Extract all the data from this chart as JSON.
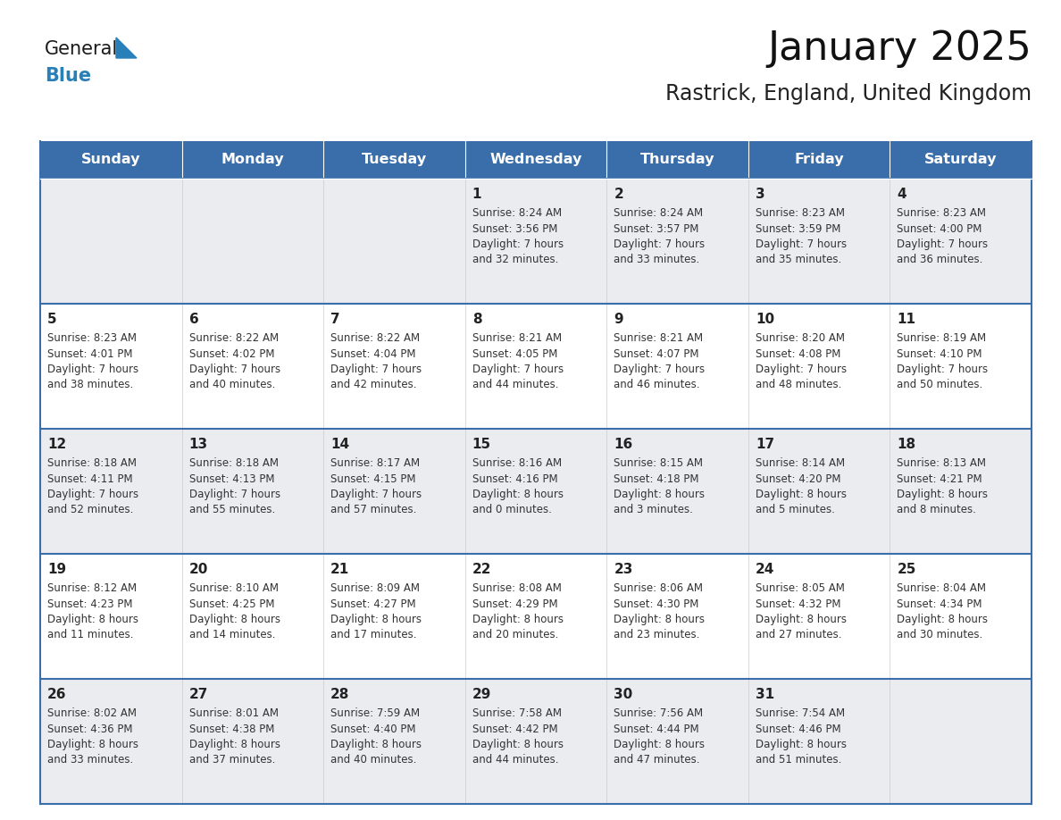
{
  "title": "January 2025",
  "subtitle": "Rastrick, England, United Kingdom",
  "days_of_week": [
    "Sunday",
    "Monday",
    "Tuesday",
    "Wednesday",
    "Thursday",
    "Friday",
    "Saturday"
  ],
  "header_bg": "#3A6EAA",
  "header_text": "#FFFFFF",
  "cell_bg_even": "#EAECF0",
  "cell_bg_odd": "#FFFFFF",
  "cell_border_light": "#CCCCCC",
  "cell_border_week": "#3A6EAA",
  "day_number_color": "#222222",
  "info_text_color": "#333333",
  "title_color": "#111111",
  "subtitle_color": "#222222",
  "logo_dark_color": "#1a1a1a",
  "logo_blue_color": "#2980B9",
  "calendar_data": [
    [
      null,
      null,
      null,
      {
        "day": "1",
        "sunrise": "8:24 AM",
        "sunset": "3:56 PM",
        "daylight": "7 hours",
        "daylight2": "and 32 minutes."
      },
      {
        "day": "2",
        "sunrise": "8:24 AM",
        "sunset": "3:57 PM",
        "daylight": "7 hours",
        "daylight2": "and 33 minutes."
      },
      {
        "day": "3",
        "sunrise": "8:23 AM",
        "sunset": "3:59 PM",
        "daylight": "7 hours",
        "daylight2": "and 35 minutes."
      },
      {
        "day": "4",
        "sunrise": "8:23 AM",
        "sunset": "4:00 PM",
        "daylight": "7 hours",
        "daylight2": "and 36 minutes."
      }
    ],
    [
      {
        "day": "5",
        "sunrise": "8:23 AM",
        "sunset": "4:01 PM",
        "daylight": "7 hours",
        "daylight2": "and 38 minutes."
      },
      {
        "day": "6",
        "sunrise": "8:22 AM",
        "sunset": "4:02 PM",
        "daylight": "7 hours",
        "daylight2": "and 40 minutes."
      },
      {
        "day": "7",
        "sunrise": "8:22 AM",
        "sunset": "4:04 PM",
        "daylight": "7 hours",
        "daylight2": "and 42 minutes."
      },
      {
        "day": "8",
        "sunrise": "8:21 AM",
        "sunset": "4:05 PM",
        "daylight": "7 hours",
        "daylight2": "and 44 minutes."
      },
      {
        "day": "9",
        "sunrise": "8:21 AM",
        "sunset": "4:07 PM",
        "daylight": "7 hours",
        "daylight2": "and 46 minutes."
      },
      {
        "day": "10",
        "sunrise": "8:20 AM",
        "sunset": "4:08 PM",
        "daylight": "7 hours",
        "daylight2": "and 48 minutes."
      },
      {
        "day": "11",
        "sunrise": "8:19 AM",
        "sunset": "4:10 PM",
        "daylight": "7 hours",
        "daylight2": "and 50 minutes."
      }
    ],
    [
      {
        "day": "12",
        "sunrise": "8:18 AM",
        "sunset": "4:11 PM",
        "daylight": "7 hours",
        "daylight2": "and 52 minutes."
      },
      {
        "day": "13",
        "sunrise": "8:18 AM",
        "sunset": "4:13 PM",
        "daylight": "7 hours",
        "daylight2": "and 55 minutes."
      },
      {
        "day": "14",
        "sunrise": "8:17 AM",
        "sunset": "4:15 PM",
        "daylight": "7 hours",
        "daylight2": "and 57 minutes."
      },
      {
        "day": "15",
        "sunrise": "8:16 AM",
        "sunset": "4:16 PM",
        "daylight": "8 hours",
        "daylight2": "and 0 minutes."
      },
      {
        "day": "16",
        "sunrise": "8:15 AM",
        "sunset": "4:18 PM",
        "daylight": "8 hours",
        "daylight2": "and 3 minutes."
      },
      {
        "day": "17",
        "sunrise": "8:14 AM",
        "sunset": "4:20 PM",
        "daylight": "8 hours",
        "daylight2": "and 5 minutes."
      },
      {
        "day": "18",
        "sunrise": "8:13 AM",
        "sunset": "4:21 PM",
        "daylight": "8 hours",
        "daylight2": "and 8 minutes."
      }
    ],
    [
      {
        "day": "19",
        "sunrise": "8:12 AM",
        "sunset": "4:23 PM",
        "daylight": "8 hours",
        "daylight2": "and 11 minutes."
      },
      {
        "day": "20",
        "sunrise": "8:10 AM",
        "sunset": "4:25 PM",
        "daylight": "8 hours",
        "daylight2": "and 14 minutes."
      },
      {
        "day": "21",
        "sunrise": "8:09 AM",
        "sunset": "4:27 PM",
        "daylight": "8 hours",
        "daylight2": "and 17 minutes."
      },
      {
        "day": "22",
        "sunrise": "8:08 AM",
        "sunset": "4:29 PM",
        "daylight": "8 hours",
        "daylight2": "and 20 minutes."
      },
      {
        "day": "23",
        "sunrise": "8:06 AM",
        "sunset": "4:30 PM",
        "daylight": "8 hours",
        "daylight2": "and 23 minutes."
      },
      {
        "day": "24",
        "sunrise": "8:05 AM",
        "sunset": "4:32 PM",
        "daylight": "8 hours",
        "daylight2": "and 27 minutes."
      },
      {
        "day": "25",
        "sunrise": "8:04 AM",
        "sunset": "4:34 PM",
        "daylight": "8 hours",
        "daylight2": "and 30 minutes."
      }
    ],
    [
      {
        "day": "26",
        "sunrise": "8:02 AM",
        "sunset": "4:36 PM",
        "daylight": "8 hours",
        "daylight2": "and 33 minutes."
      },
      {
        "day": "27",
        "sunrise": "8:01 AM",
        "sunset": "4:38 PM",
        "daylight": "8 hours",
        "daylight2": "and 37 minutes."
      },
      {
        "day": "28",
        "sunrise": "7:59 AM",
        "sunset": "4:40 PM",
        "daylight": "8 hours",
        "daylight2": "and 40 minutes."
      },
      {
        "day": "29",
        "sunrise": "7:58 AM",
        "sunset": "4:42 PM",
        "daylight": "8 hours",
        "daylight2": "and 44 minutes."
      },
      {
        "day": "30",
        "sunrise": "7:56 AM",
        "sunset": "4:44 PM",
        "daylight": "8 hours",
        "daylight2": "and 47 minutes."
      },
      {
        "day": "31",
        "sunrise": "7:54 AM",
        "sunset": "4:46 PM",
        "daylight": "8 hours",
        "daylight2": "and 51 minutes."
      },
      null
    ]
  ]
}
